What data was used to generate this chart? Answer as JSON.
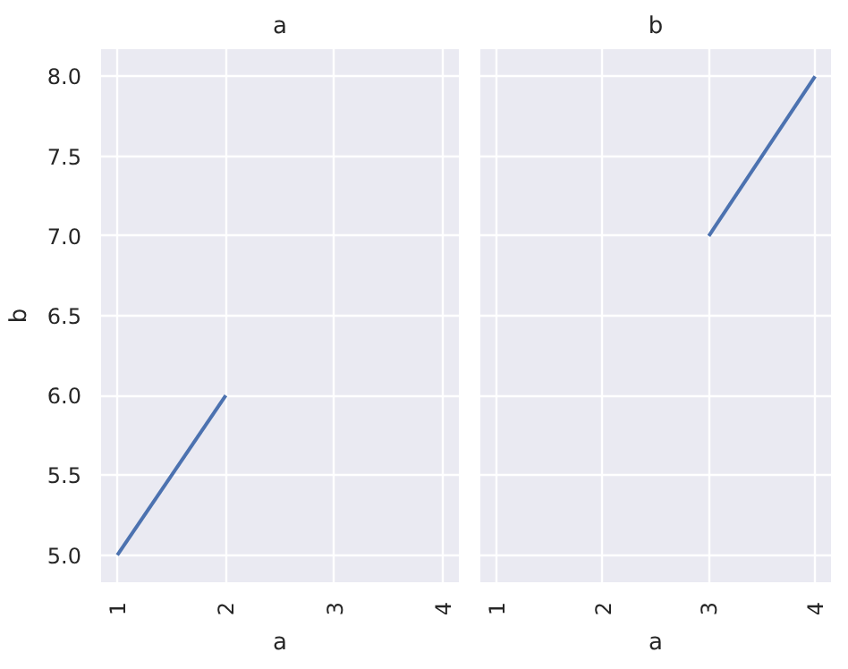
{
  "chart_data": [
    {
      "type": "line",
      "title": "a",
      "xlabel": "a",
      "ylabel": "b",
      "series": [
        {
          "color": "#4c72b0",
          "x": [
            1,
            2
          ],
          "values": [
            5.0,
            6.0
          ]
        }
      ],
      "xlim": [
        0.85,
        4.15
      ],
      "ylim": [
        4.83,
        8.17
      ],
      "xticks": [
        1,
        2,
        3,
        4
      ],
      "yticks": [
        {
          "value": 5,
          "label": "5.0"
        },
        {
          "value": 5.5,
          "label": "5.5"
        },
        {
          "value": 6,
          "label": "6.0"
        },
        {
          "value": 6.5,
          "label": "6.5"
        },
        {
          "value": 7,
          "label": "7.0"
        },
        {
          "value": 7.5,
          "label": "7.5"
        },
        {
          "value": 8,
          "label": "8.0"
        }
      ],
      "grid": true
    },
    {
      "type": "line",
      "title": "b",
      "xlabel": "a",
      "series": [
        {
          "color": "#4c72b0",
          "x": [
            3,
            4
          ],
          "values": [
            7.0,
            8.0
          ]
        }
      ],
      "xlim": [
        0.85,
        4.15
      ],
      "ylim": [
        4.83,
        8.17
      ],
      "xticks": [
        1,
        2,
        3,
        4
      ],
      "yticks": [
        {
          "value": 5,
          "label": null
        },
        {
          "value": 5.5,
          "label": null
        },
        {
          "value": 6,
          "label": null
        },
        {
          "value": 6.5,
          "label": null
        },
        {
          "value": 7,
          "label": null
        },
        {
          "value": 7.5,
          "label": null
        },
        {
          "value": 8,
          "label": null
        }
      ],
      "grid": true,
      "tick_labels": "x"
    }
  ]
}
